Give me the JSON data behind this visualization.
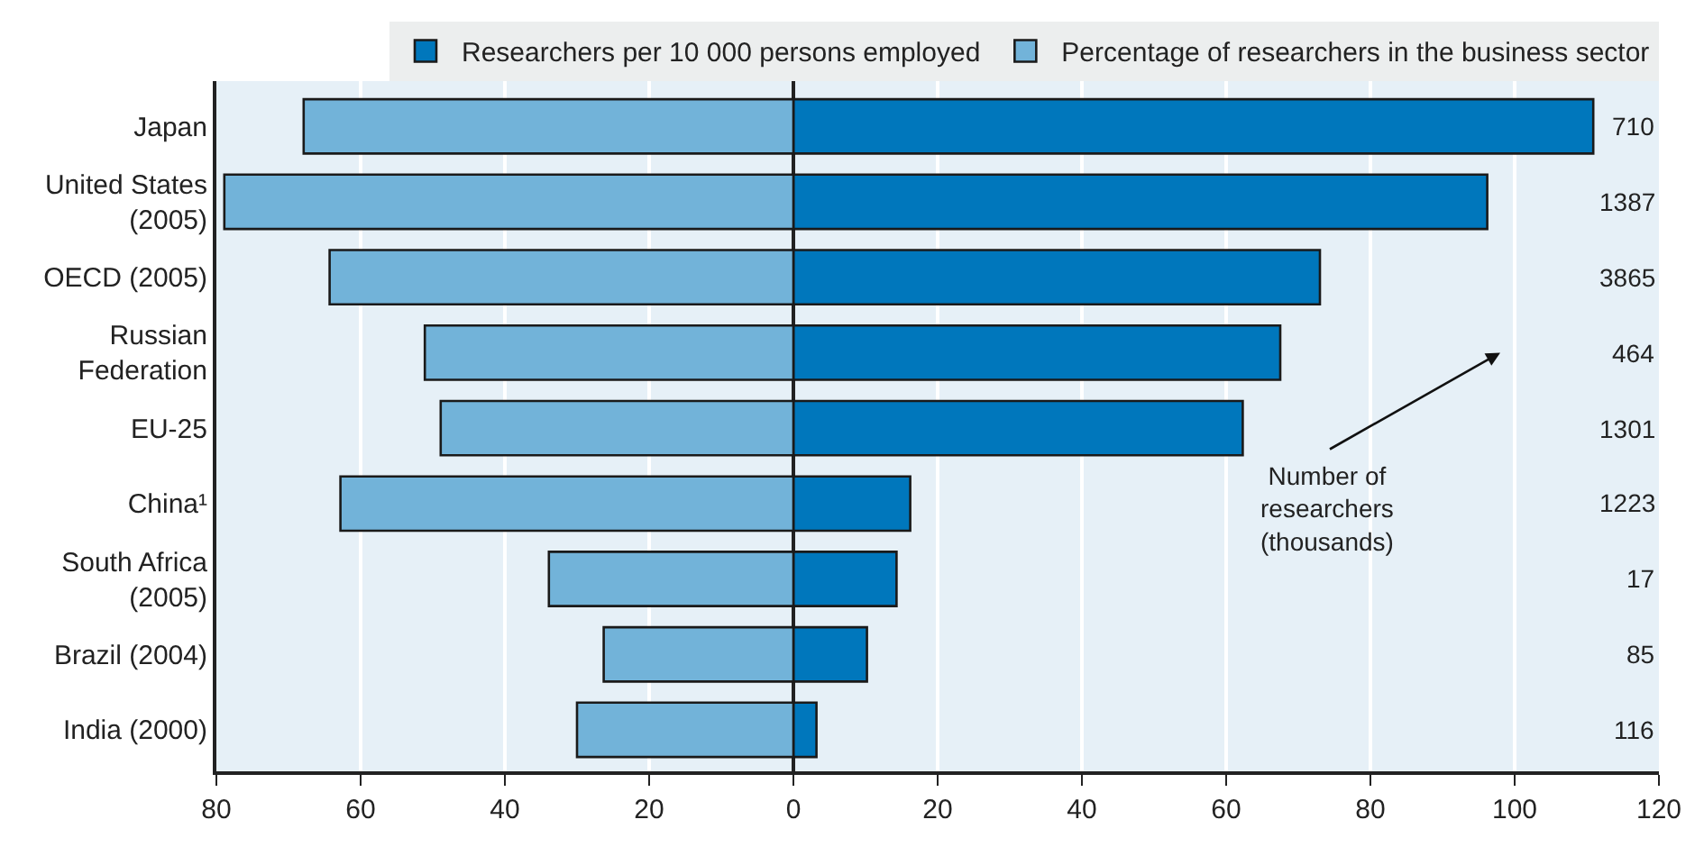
{
  "chart_data": {
    "type": "bar",
    "orientation": "horizontal",
    "categories": [
      "Japan",
      "United States\n(2005)",
      "OECD (2005)",
      "Russian\nFederation",
      "EU-25",
      "China¹",
      "South Africa\n(2005)",
      "Brazil (2004)",
      "India (2000)"
    ],
    "series": [
      {
        "name": "Researchers per 10 000 persons employed",
        "color": "#0077bc",
        "values": [
          110.9,
          96.2,
          73.0,
          67.5,
          62.3,
          16.2,
          14.3,
          10.2,
          3.2
        ]
      },
      {
        "name": "Percentage of researchers in the business sector",
        "color": "#72b3d9",
        "values": [
          -67.9,
          -78.9,
          -64.3,
          -51.1,
          -48.9,
          -62.8,
          -33.9,
          -26.3,
          -30.0
        ]
      }
    ],
    "xlim": [
      -80,
      120
    ],
    "xticks": [
      {
        "value": -80,
        "label": "80"
      },
      {
        "value": -60,
        "label": "60"
      },
      {
        "value": -40,
        "label": "40"
      },
      {
        "value": -20,
        "label": "20"
      },
      0,
      20,
      40,
      60,
      80,
      100,
      120
    ],
    "grid": "x",
    "legend": "top",
    "stacked": true,
    "annotations": [
      "710",
      "1387",
      "3865",
      "464",
      "1301",
      "1223",
      "17",
      "85",
      "116",
      "Number of\nresearchers\n(thousands)"
    ]
  }
}
